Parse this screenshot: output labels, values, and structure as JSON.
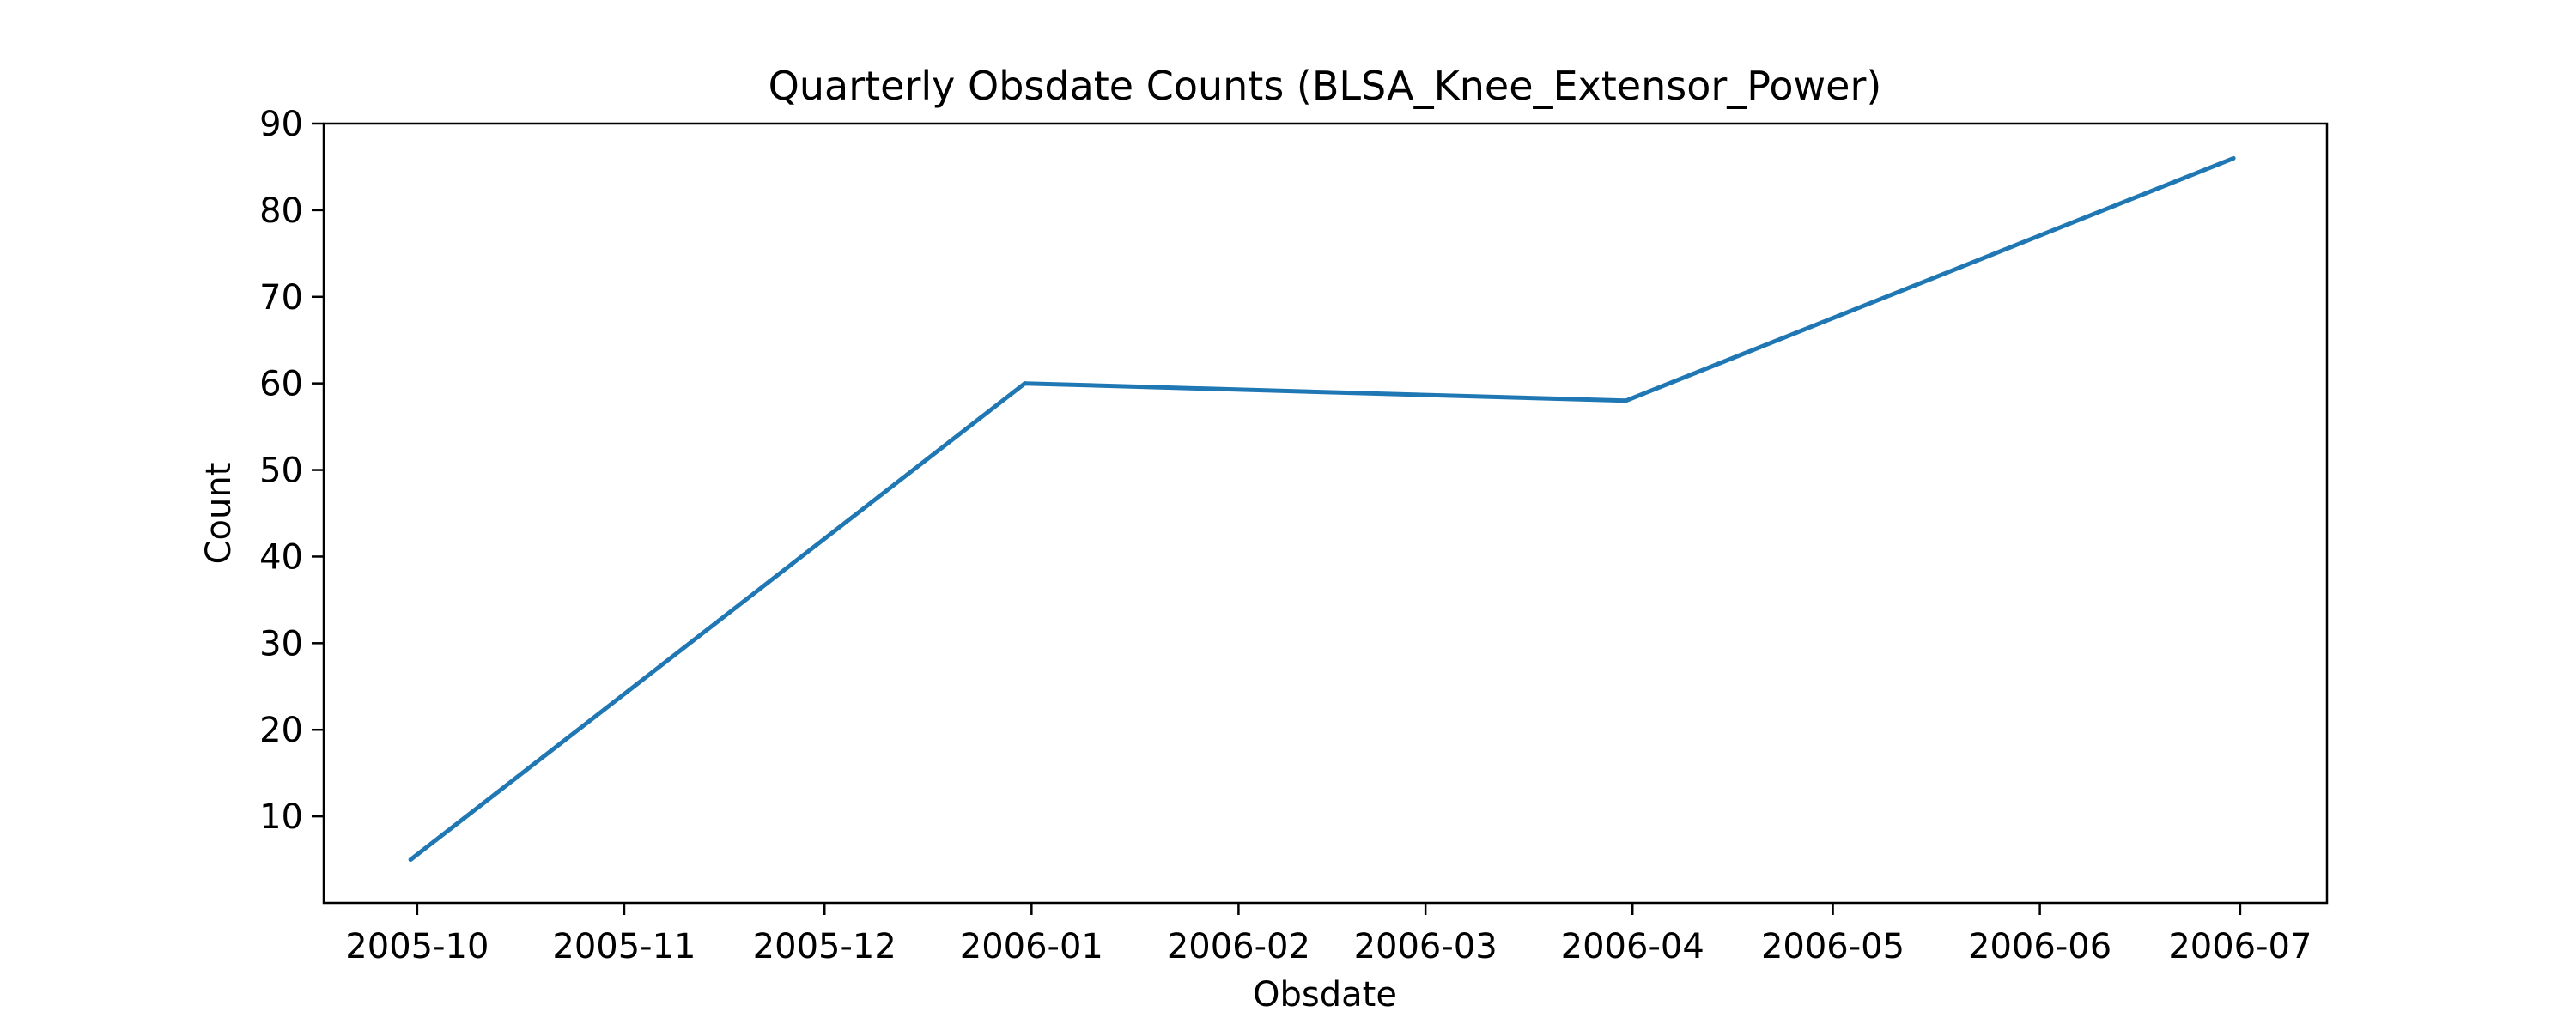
{
  "chart_data": {
    "type": "line",
    "title": "Quarterly Obsdate Counts (BLSA_Knee_Extensor_Power)",
    "xlabel": "Obsdate",
    "ylabel": "Count",
    "x_ticks": [
      "2005-10-01",
      "2005-11-01",
      "2005-12-01",
      "2006-01-01",
      "2006-02-01",
      "2006-03-01",
      "2006-04-01",
      "2006-05-01",
      "2006-06-01",
      "2006-07-01"
    ],
    "x_tick_labels": [
      "2005-10",
      "2005-11",
      "2005-12",
      "2006-01",
      "2006-02",
      "2006-03",
      "2006-04",
      "2006-05",
      "2006-06",
      "2006-07"
    ],
    "xlim": [
      "2005-09-17",
      "2006-07-14"
    ],
    "ylim": [
      0,
      90
    ],
    "y_ticks": [
      10,
      20,
      30,
      40,
      50,
      60,
      70,
      80,
      90
    ],
    "grid": false,
    "series": [
      {
        "x": [
          "2005-09-30",
          "2005-12-31",
          "2006-03-31",
          "2006-06-30"
        ],
        "values": [
          5,
          60,
          58,
          86
        ],
        "color": "#1f77b4"
      }
    ]
  }
}
